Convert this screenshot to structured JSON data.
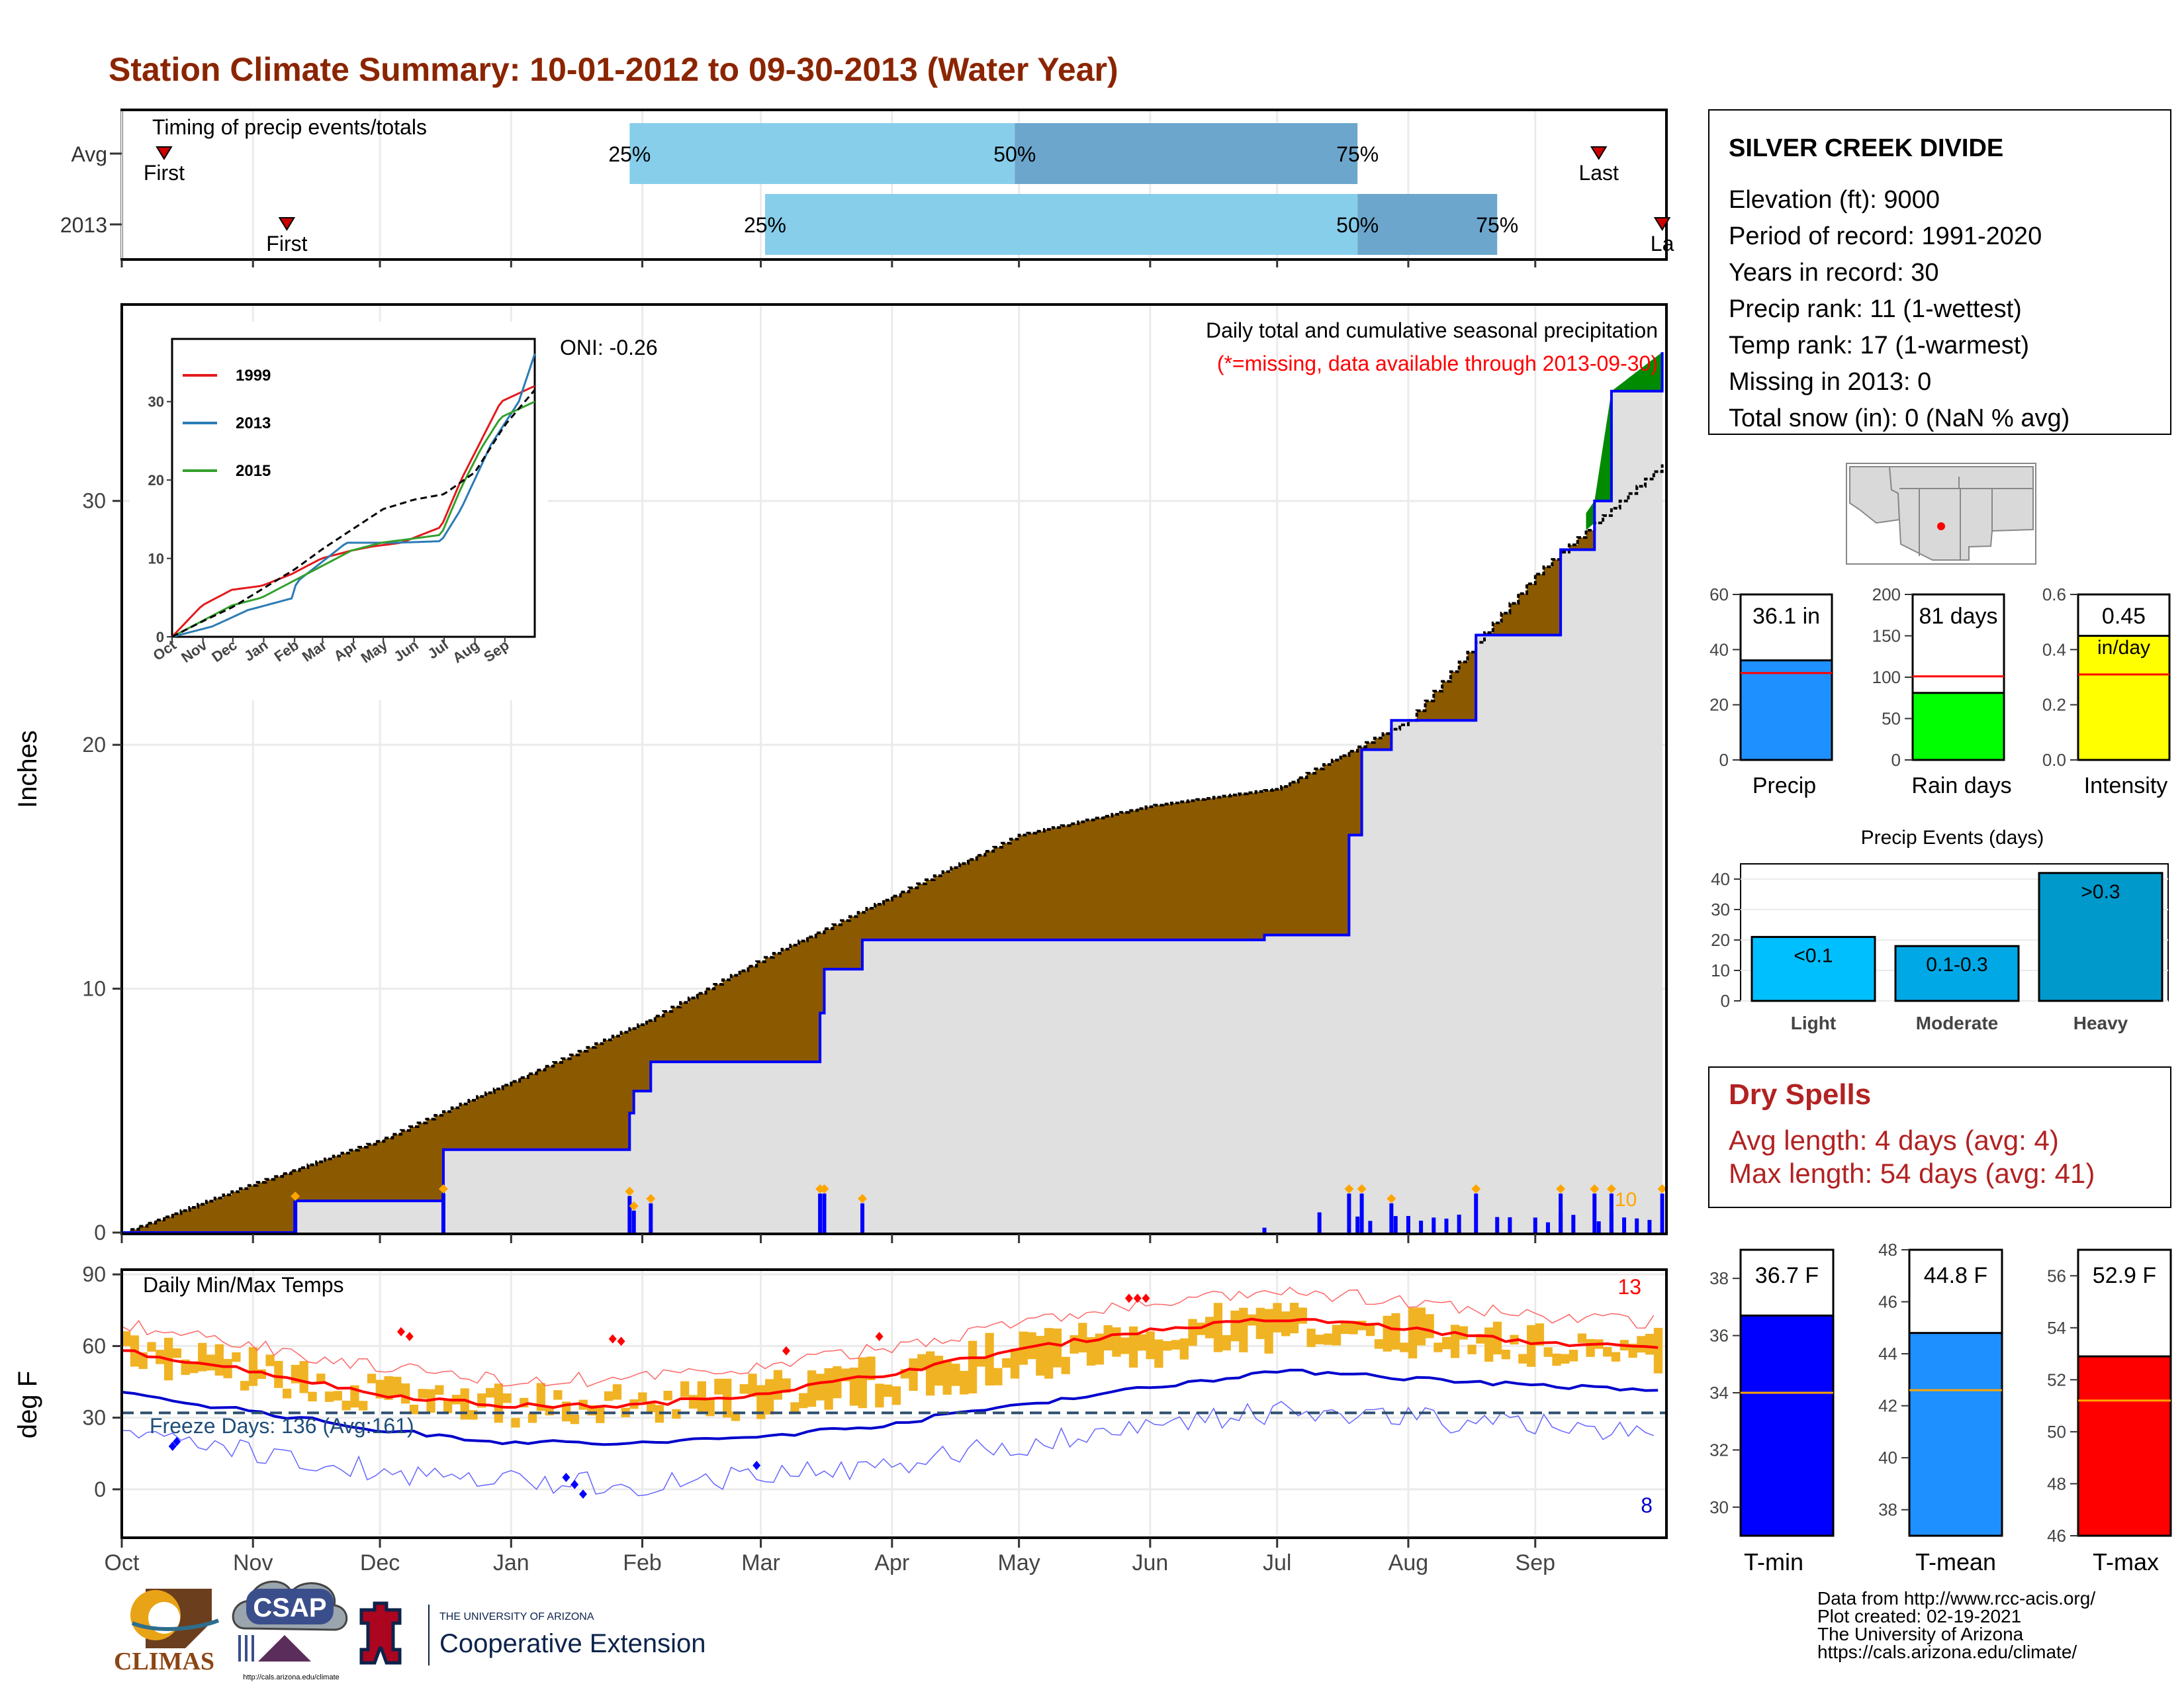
{
  "title": "Station Climate Summary: 10-01-2012 to 09-30-2013 (Water Year)",
  "colors": {
    "title": "#8b2500",
    "dry_spells": "#b22222",
    "cumulative_fill": "#8b5a00",
    "surplus_fill": "#008b00",
    "observed_area": "#e0e0e0",
    "observed_line": "#0000ff",
    "daily_bars": "#0000ff",
    "extreme_marker": "#ffa500",
    "temp_range": "#f0b323",
    "tmax_avg": "#ff0000",
    "tmin_avg": "#0000cd",
    "freeze_line": "#2f4f6f"
  },
  "timing": {
    "title": "Timing of precip events/totals",
    "row_labels": [
      "Avg",
      "2013"
    ],
    "axis_months": [
      "Oct",
      "Nov",
      "Dec",
      "Jan",
      "Feb",
      "Mar",
      "Apr",
      "May",
      "Jun",
      "Jul",
      "Aug",
      "Sep"
    ],
    "rows": [
      {
        "name": "Avg",
        "first_day": 10,
        "last_day": 349,
        "p25_day": 120,
        "p50_day": 211,
        "p75_day": 292,
        "first_label": "First",
        "last_label": "Last"
      },
      {
        "name": "2013",
        "first_day": 39,
        "last_day": 364,
        "p25_day": 152,
        "p50_day": 292,
        "p75_day": 325,
        "first_label": "First",
        "last_label": "La"
      }
    ],
    "pct_labels": [
      "25%",
      "50%",
      "75%"
    ]
  },
  "main": {
    "ylabel": "Inches",
    "oni": "ONI: -0.26",
    "subtitle": "Daily total and cumulative seasonal precipitation",
    "missing_note": "(*=missing, data available through 2013-09-30)",
    "corner_count": "10"
  },
  "inset": {
    "series_names": [
      "1999",
      "2013",
      "2015"
    ],
    "series_colors": [
      "#e31a1c",
      "#2c7bb6",
      "#33a02c"
    ],
    "avg_color": "#000000",
    "months": [
      "Oct",
      "Nov",
      "Dec",
      "Jan",
      "Feb",
      "Mar",
      "Apr",
      "May",
      "Jun",
      "Jul",
      "Aug",
      "Sep"
    ]
  },
  "temps": {
    "title": "Daily Min/Max Temps",
    "ylabel": "deg F",
    "freeze_text": "Freeze Days: 136 (Avg:161)",
    "tmax_extreme_count": "13",
    "tmin_extreme_count": "8",
    "freeze_line": 32
  },
  "station": {
    "name": "SILVER CREEK DIVIDE",
    "lines": [
      "Elevation (ft): 9000",
      "Period of record: 1991-2020",
      "Years in record: 30",
      "Precip rank: 11 (1-wettest)",
      "Temp rank: 17 (1-warmest)",
      "Missing in 2013: 0",
      "Total snow (in): 0 (NaN % avg)"
    ]
  },
  "summary_bars": [
    {
      "label": "Precip",
      "value_text": "36.1 in",
      "value": 36.1,
      "avg": 31.5,
      "max": 60,
      "ticks": [
        0,
        20,
        40,
        60
      ],
      "color": "#1e90ff"
    },
    {
      "label": "Rain days",
      "value_text": "81 days",
      "value": 81,
      "avg": 101,
      "max": 200,
      "ticks": [
        0,
        50,
        100,
        150,
        200
      ],
      "color": "#00ff00"
    },
    {
      "label": "Intensity",
      "value_text": "0.45",
      "value_text2": "in/day",
      "value": 0.45,
      "avg": 0.31,
      "max": 0.6,
      "ticks": [
        0.0,
        0.2,
        0.4,
        0.6
      ],
      "color": "#ffff00"
    }
  ],
  "precip_events": {
    "title": "Precip Events (days)",
    "categories": [
      "Light",
      "Moderate",
      "Heavy"
    ],
    "bar_labels": [
      "<0.1",
      "0.1-0.3",
      ">0.3"
    ],
    "values": [
      21,
      18,
      42
    ],
    "ticks": [
      0,
      10,
      20,
      30,
      40
    ],
    "colors": [
      "#00bfff",
      "#00a8e6",
      "#0099cc"
    ]
  },
  "dry_spells": {
    "title": "Dry Spells",
    "line1": "Avg length: 4 days (avg: 4)",
    "line2": "Max length: 54 days (avg: 41)"
  },
  "temp_bars": [
    {
      "label": "T-min",
      "value_text": "36.7 F",
      "value": 36.7,
      "avg": 34.0,
      "min": 29,
      "max": 39,
      "ticks": [
        30,
        32,
        34,
        36,
        38
      ],
      "color": "#0000ff"
    },
    {
      "label": "T-mean",
      "value_text": "44.8 F",
      "value": 44.8,
      "avg": 42.6,
      "min": 37,
      "max": 48,
      "ticks": [
        38,
        40,
        42,
        44,
        46,
        48
      ],
      "color": "#1e90ff"
    },
    {
      "label": "T-max",
      "value_text": "52.9 F",
      "value": 52.9,
      "avg": 51.2,
      "min": 46,
      "max": 57,
      "ticks": [
        46,
        48,
        50,
        52,
        54,
        56
      ],
      "color": "#ff0000"
    }
  ],
  "footer": {
    "lines": [
      "Data from http://www.rcc-acis.org/",
      "Plot created: 02-19-2021",
      "The University of Arizona",
      "https://cals.arizona.edu/climate/"
    ],
    "climas": "CLIMAS",
    "csap": "CSAP",
    "csap_url": "http://cals.arizona.edu/climate",
    "ua_small": "THE UNIVERSITY OF ARIZONA",
    "ua_big": "Cooperative Extension"
  },
  "chart_data": [
    {
      "type": "area",
      "title": "Daily total and cumulative seasonal precipitation",
      "ylabel": "Inches",
      "ylim": [
        0,
        38
      ],
      "x_months": [
        "Oct",
        "Nov",
        "Dec",
        "Jan",
        "Feb",
        "Mar",
        "Apr",
        "May",
        "Jun",
        "Jul",
        "Aug",
        "Sep"
      ],
      "series": [
        {
          "name": "avg_cumulative",
          "x_day": [
            0,
            31,
            61,
            92,
            123,
            151,
            182,
            212,
            243,
            273,
            304,
            334,
            364
          ],
          "values": [
            0,
            2.0,
            3.8,
            6.2,
            8.6,
            11.2,
            13.8,
            16.3,
            17.5,
            18.2,
            21.0,
            27.0,
            31.5
          ]
        },
        {
          "name": "2013_cumulative",
          "x_day": [
            0,
            40,
            41,
            75,
            76,
            120,
            121,
            125,
            165,
            166,
            175,
            225,
            260,
            270,
            290,
            293,
            300,
            320,
            340,
            348,
            352,
            364
          ],
          "values": [
            0,
            0,
            1.3,
            1.3,
            3.4,
            4.9,
            5.8,
            7.0,
            9.0,
            10.8,
            12.0,
            12.0,
            12.0,
            12.2,
            16.3,
            19.8,
            21.0,
            24.5,
            28.0,
            30.0,
            34.5,
            36.1
          ]
        }
      ]
    },
    {
      "type": "line",
      "title": "",
      "ylim": [
        0,
        38
      ],
      "x_months": [
        "Oct",
        "Nov",
        "Dec",
        "Jan",
        "Feb",
        "Mar",
        "Apr",
        "May",
        "Jun",
        "Jul",
        "Aug",
        "Sep"
      ],
      "series": [
        {
          "name": "1999",
          "x_day": [
            0,
            30,
            60,
            90,
            120,
            150,
            180,
            200,
            230,
            270,
            290,
            310,
            330,
            364
          ],
          "values": [
            0,
            4,
            6,
            6.5,
            8,
            10,
            11,
            11.5,
            12,
            14,
            20,
            25,
            30,
            32
          ]
        },
        {
          "name": "2013",
          "x_day": [
            0,
            40,
            76,
            120,
            125,
            175,
            225,
            270,
            290,
            320,
            348,
            364
          ],
          "values": [
            0,
            1.3,
            3.4,
            4.9,
            7,
            12,
            12,
            12.2,
            16.3,
            24.5,
            30,
            36.1
          ]
        },
        {
          "name": "2015",
          "x_day": [
            0,
            30,
            60,
            90,
            120,
            150,
            180,
            210,
            240,
            270,
            290,
            310,
            330,
            364
          ],
          "values": [
            0,
            2,
            4,
            5,
            7,
            9,
            11,
            12,
            12.5,
            13,
            19,
            24,
            28,
            30
          ]
        },
        {
          "name": "avg",
          "x_day": [
            0,
            31,
            61,
            92,
            123,
            151,
            182,
            212,
            243,
            273,
            304,
            334,
            364
          ],
          "values": [
            0,
            2.0,
            3.8,
            6.2,
            8.6,
            11.2,
            13.8,
            16.3,
            17.5,
            18.2,
            21.0,
            27.0,
            31.5
          ]
        }
      ]
    },
    {
      "type": "line",
      "title": "Daily Min/Max Temps",
      "ylabel": "deg F",
      "ylim": [
        -20,
        92
      ],
      "x_months": [
        "Oct",
        "Nov",
        "Dec",
        "Jan",
        "Feb",
        "Mar",
        "Apr",
        "May",
        "Jun",
        "Jul",
        "Aug",
        "Sep"
      ],
      "series": [
        {
          "name": "avg_tmax",
          "x_day": [
            0,
            30,
            60,
            90,
            120,
            150,
            180,
            210,
            240,
            270,
            290,
            300,
            330,
            364
          ],
          "values": [
            58,
            50,
            40,
            35,
            35,
            40,
            48,
            58,
            66,
            71,
            70,
            68,
            62,
            59
          ]
        },
        {
          "name": "avg_tmin",
          "x_day": [
            0,
            30,
            60,
            90,
            120,
            150,
            180,
            210,
            240,
            270,
            290,
            300,
            330,
            364
          ],
          "values": [
            40,
            33,
            25,
            20,
            19,
            22,
            27,
            35,
            42,
            49,
            49,
            47,
            44,
            41
          ]
        }
      ]
    }
  ]
}
